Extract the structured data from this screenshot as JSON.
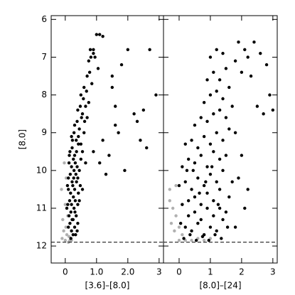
{
  "chart_data": [
    {
      "type": "scatter",
      "xlabel": "[3.6]–[8.0]",
      "ylabel": "[8.0]",
      "xlim": [
        -0.45,
        3.14
      ],
      "ylim": [
        5.9,
        12.45
      ],
      "y_inverted": true,
      "xticks": [
        0,
        {
          "value": 1,
          "label": "1.0"
        },
        {
          "value": 2,
          "label": "2.0"
        },
        3
      ],
      "yticks": [
        6,
        7,
        8,
        9,
        10,
        11,
        12
      ],
      "hline": 11.9,
      "series": [
        {
          "color": "#b0b0b0",
          "x": [
            -0.1,
            -0.05,
            0,
            0.05,
            0.1,
            -0.08,
            0.02,
            0.08,
            0.15,
            -0.12,
            0,
            0.05,
            0.12,
            0.2,
            -0.03,
            0.03
          ],
          "values": [
            11.8,
            11.6,
            11.85,
            11.7,
            11.9,
            11.3,
            11.5,
            11.2,
            11.85,
            10.5,
            10.9,
            11.0,
            11.75,
            11.85,
            9.8,
            10.2
          ]
        },
        {
          "color": "#000000",
          "x": [
            0.1,
            0.15,
            0.2,
            0.25,
            0.3,
            0.12,
            0.18,
            0.22,
            0.28,
            0.35,
            0.08,
            0.14,
            0.2,
            0.26,
            0.32,
            0.4,
            0.1,
            0.17,
            0.24,
            0.3,
            0.36,
            0.42,
            0.1,
            0.16,
            0.22,
            0.28,
            0.34,
            0.4,
            0.12,
            0.2,
            0.26,
            0.32,
            0.38,
            0.45,
            0.15,
            0.22,
            0.3,
            0.36,
            0.42,
            0.5,
            0.2,
            0.28,
            0.35,
            0.42,
            0.5,
            0.55,
            0.3,
            0.38,
            0.45,
            0.52,
            0.6,
            0.4,
            0.48,
            0.55,
            0.62,
            0.5,
            0.58,
            0.65,
            0.7,
            0.6,
            0.68,
            0.75,
            0.7,
            0.78,
            0.85,
            0.75,
            0.82,
            0.9,
            0.95,
            0.8,
            1.0,
            0.9,
            1.1,
            1.2,
            1.05,
            0.55,
            0.65,
            0.45,
            0.25,
            0.38,
            1.5,
            1.6,
            1.8,
            2.0,
            2.2,
            2.3,
            2.5,
            2.7,
            2.9,
            1.2,
            1.4,
            1.7,
            1.9,
            2.4,
            2.6,
            1.3,
            1.1,
            1.5,
            0.9,
            1.6,
            0.05,
            0.18,
            0.33,
            0.27,
            0.13,
            0.4,
            0.07,
            0.23,
            0.31,
            0.48
          ],
          "values": [
            11.5,
            11.4,
            11.6,
            11.3,
            11.5,
            11.2,
            11.1,
            11.3,
            11.0,
            11.2,
            10.9,
            10.8,
            10.9,
            10.7,
            10.8,
            10.9,
            10.5,
            10.6,
            10.4,
            10.5,
            10.3,
            10.6,
            10.2,
            10.1,
            10.3,
            10.0,
            10.1,
            10.2,
            9.8,
            9.9,
            9.7,
            9.8,
            9.9,
            10.0,
            9.5,
            9.4,
            9.6,
            9.5,
            9.3,
            9.7,
            9.1,
            9.0,
            9.2,
            9.1,
            9.3,
            9.5,
            8.8,
            8.7,
            8.9,
            8.6,
            9.0,
            8.4,
            8.3,
            8.5,
            8.7,
            8.0,
            8.1,
            8.3,
            8.6,
            7.8,
            7.9,
            8.2,
            7.5,
            7.4,
            7.7,
            7.1,
            7.0,
            6.9,
            7.0,
            6.8,
            6.4,
            6.8,
            6.4,
            6.45,
            7.3,
            10.5,
            9.8,
            10.8,
            11.7,
            11.6,
            7.8,
            8.3,
            7.2,
            6.8,
            8.5,
            8.7,
            8.4,
            6.8,
            8.0,
            9.2,
            9.6,
            9.0,
            10.0,
            9.2,
            9.4,
            10.1,
            9.8,
            7.5,
            9.5,
            8.8,
            11.0,
            11.8,
            11.7,
            10.2,
            9.6,
            11.4,
            10.4,
            9.2,
            11.1,
            10.4
          ]
        }
      ]
    },
    {
      "type": "scatter",
      "xlabel": "[8.0]–[24]",
      "xlim": [
        -0.5,
        3.14
      ],
      "ylim": [
        5.9,
        12.45
      ],
      "y_inverted": true,
      "xticks": [
        0,
        1,
        2,
        3
      ],
      "hline": 11.9,
      "series": [
        {
          "color": "#b0b0b0",
          "x": [
            -0.3,
            -0.2,
            -0.1,
            0,
            0.1,
            -0.25,
            -0.15,
            0,
            0.2,
            0.4,
            0.6,
            -0.3,
            -0.1,
            0.1,
            0.8,
            1.0
          ],
          "values": [
            10.8,
            11.0,
            11.2,
            11.5,
            11.7,
            11.4,
            11.6,
            11.85,
            11.85,
            11.85,
            11.8,
            10.5,
            10.4,
            10.9,
            11.85,
            11.8
          ]
        },
        {
          "color": "#000000",
          "x": [
            0.2,
            0.4,
            0.6,
            0.8,
            1.0,
            1.2,
            1.4,
            0.3,
            0.5,
            0.7,
            0.9,
            1.1,
            1.3,
            1.5,
            0.1,
            0.3,
            0.5,
            0.7,
            0.9,
            1.1,
            1.3,
            1.6,
            0.0,
            0.2,
            0.4,
            0.6,
            0.8,
            1.0,
            1.2,
            1.4,
            1.7,
            0.1,
            0.3,
            0.5,
            0.7,
            0.9,
            1.1,
            1.3,
            1.5,
            0.2,
            0.4,
            0.6,
            0.8,
            1.0,
            1.2,
            1.4,
            1.6,
            0.5,
            0.7,
            0.9,
            1.1,
            1.3,
            1.5,
            0.8,
            1.0,
            1.2,
            1.4,
            1.7,
            0.9,
            1.1,
            1.3,
            1.5,
            1.0,
            1.2,
            1.4,
            1.8,
            2.0,
            1.6,
            1.9,
            2.1,
            2.2,
            2.4,
            2.6,
            2.8,
            2.3,
            2.5,
            2.7,
            2.9,
            3.0,
            1.8,
            2.0,
            1.9,
            2.2,
            2.1,
            1.8,
            0.15,
            0.35,
            0.55,
            0.75,
            0.95,
            1.15,
            1.35,
            1.55,
            0.05,
            0.25,
            0.45,
            0.65,
            0.85,
            1.05,
            1.25
          ],
          "values": [
            11.5,
            11.6,
            11.4,
            11.7,
            11.5,
            11.6,
            11.3,
            11.2,
            11.1,
            11.3,
            11.0,
            11.2,
            11.0,
            11.1,
            10.9,
            10.8,
            10.7,
            10.9,
            10.6,
            10.8,
            10.5,
            10.7,
            10.4,
            10.3,
            10.5,
            10.2,
            10.4,
            10.1,
            10.3,
            10.0,
            10.3,
            9.9,
            9.7,
            9.8,
            9.6,
            9.9,
            9.5,
            9.7,
            9.6,
            9.3,
            9.2,
            9.4,
            9.1,
            9.3,
            9.0,
            9.2,
            8.9,
            8.8,
            8.6,
            8.7,
            8.5,
            8.4,
            8.6,
            8.2,
            8.0,
            7.9,
            8.1,
            8.3,
            7.6,
            7.4,
            7.6,
            7.3,
            7.0,
            6.8,
            6.9,
            7.1,
            7.4,
            7.8,
            6.6,
            6.8,
            7.0,
            6.6,
            6.9,
            7.2,
            7.5,
            8.3,
            8.5,
            8.0,
            8.4,
            9.0,
            9.6,
            10.2,
            10.5,
            11.0,
            11.5,
            11.8,
            11.7,
            11.85,
            11.75,
            11.85,
            11.7,
            11.8,
            11.5,
            11.4,
            10.0,
            10.0,
            10.6,
            10.3,
            9.9,
            10.9
          ]
        }
      ]
    }
  ]
}
